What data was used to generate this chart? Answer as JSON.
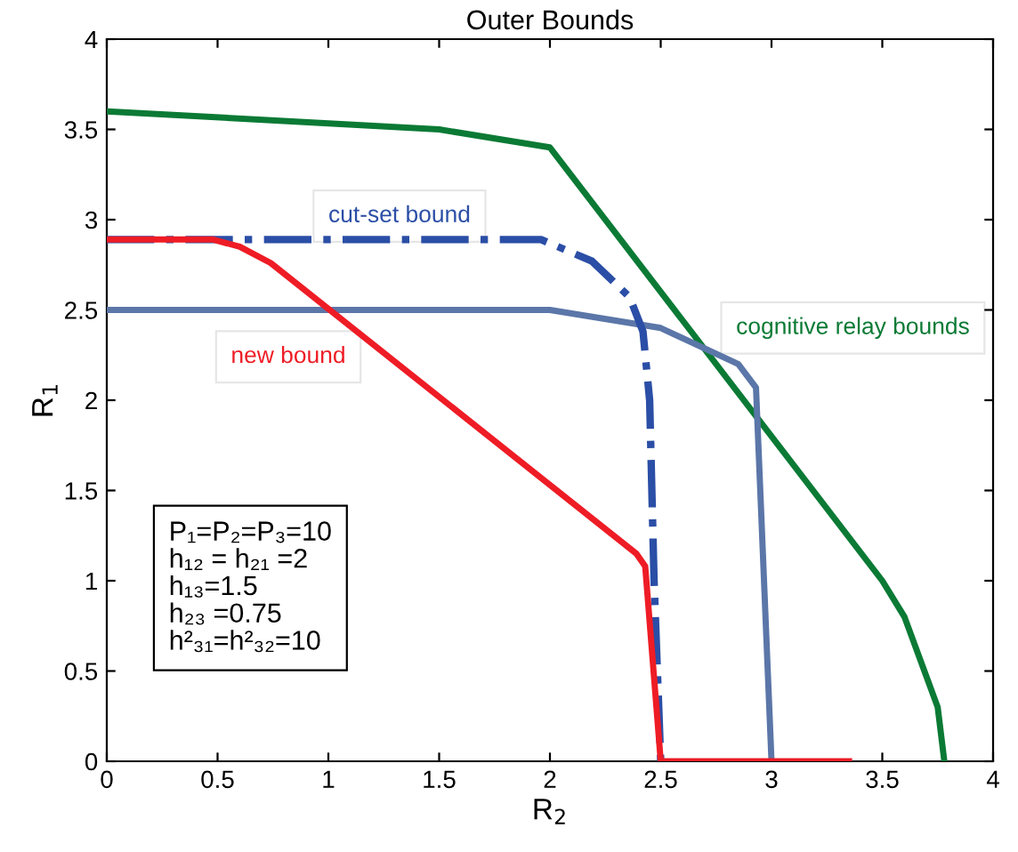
{
  "chart_data": {
    "type": "line",
    "title": "Outer Bounds",
    "xlabel": "R$_{2}$",
    "ylabel": "R$_{1}$",
    "xlim": [
      0,
      4
    ],
    "ylim": [
      0,
      4
    ],
    "xticks": [
      0,
      0.5,
      1,
      1.5,
      2,
      2.5,
      3,
      3.5,
      4
    ],
    "yticks": [
      0,
      0.5,
      1,
      1.5,
      2,
      2.5,
      3,
      3.5,
      4
    ],
    "grid": false,
    "legend": false,
    "marker": "none",
    "series": [
      {
        "name": "cognitive relay bounds",
        "color": "#0b7a35",
        "line_style": "solid",
        "x": [
          0,
          1.5,
          2,
          3.5,
          3.6,
          3.75,
          3.78
        ],
        "values": [
          3.6,
          3.5,
          3.4,
          1.0,
          0.8,
          0.3,
          0
        ]
      },
      {
        "color": "#5b76a8",
        "line_style": "solid",
        "x": [
          0,
          2,
          2.5,
          2.85,
          2.93,
          3
        ],
        "values": [
          2.5,
          2.5,
          2.4,
          2.2,
          2.07,
          0
        ]
      },
      {
        "name": "cut-set bound",
        "color": "#2b4ea6",
        "line_style": "dashdot",
        "x": [
          0,
          1.96,
          2.19,
          2.36,
          2.42,
          2.45,
          2.47,
          2.5
        ],
        "values": [
          2.89,
          2.89,
          2.77,
          2.57,
          2.38,
          2.0,
          1.0,
          0
        ]
      },
      {
        "name": "new bound",
        "color": "#ee1c25",
        "line_style": "solid",
        "x": [
          0,
          0.48,
          0.6,
          0.74,
          2.39,
          2.43,
          2.5,
          3.35
        ],
        "values": [
          2.89,
          2.89,
          2.85,
          2.76,
          1.15,
          1.08,
          0,
          0
        ]
      }
    ],
    "annotations": [
      "P₁=P₂=P₃=10\nh₁₂ = h₂₁ =2\nh₁₃=1.5\nh₂₃ =0.75\nh²₃₁=h²₃₂=10"
    ]
  }
}
